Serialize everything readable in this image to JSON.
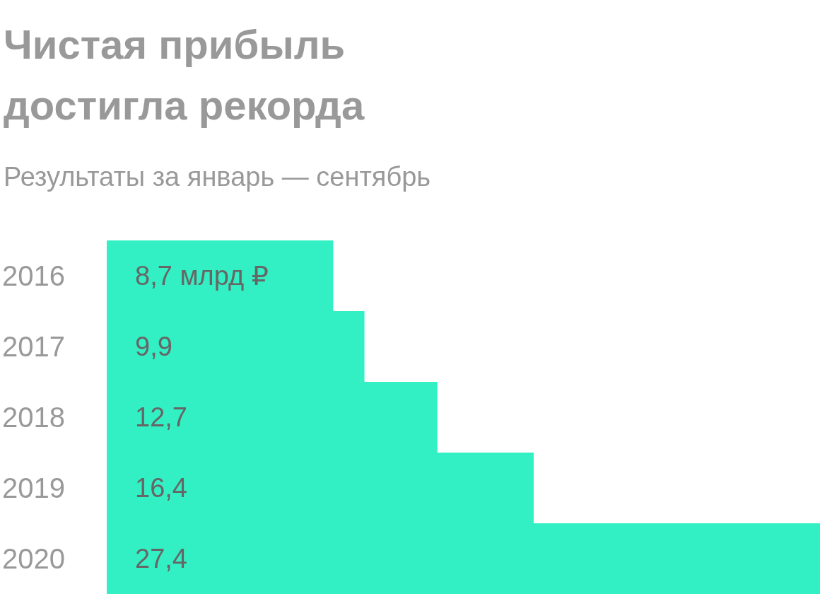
{
  "chart_data": {
    "type": "bar",
    "orientation": "horizontal",
    "title": "Чистая прибыль достигла рекорда",
    "subtitle": "Результаты за январь — сентябрь",
    "categories": [
      "2016",
      "2017",
      "2018",
      "2019",
      "2020"
    ],
    "values": [
      8.7,
      9.9,
      12.7,
      16.4,
      27.4
    ],
    "value_labels": [
      "8,7 млрд ₽",
      "9,9",
      "12,7",
      "16,4",
      "27,4"
    ],
    "color": "#33f0c4"
  }
}
